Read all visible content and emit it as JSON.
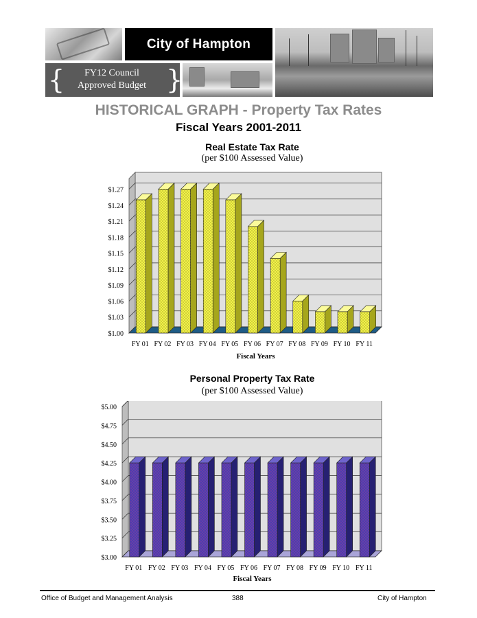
{
  "banner": {
    "title": "City of Hampton",
    "subtitle_line1": "FY12 Council",
    "subtitle_line2": "Approved Budget"
  },
  "heading": {
    "title": "HISTORICAL GRAPH - Property Tax Rates",
    "subtitle": "Fiscal Years 2001-2011"
  },
  "chart_data": [
    {
      "type": "bar",
      "title": "Real Estate Tax Rate",
      "subtitle": "(per $100 Assessed Value)",
      "xlabel": "Fiscal Years",
      "ylabel": "",
      "categories": [
        "FY 01",
        "FY 02",
        "FY 03",
        "FY 04",
        "FY 05",
        "FY 06",
        "FY 07",
        "FY 08",
        "FY 09",
        "FY 10",
        "FY 11"
      ],
      "values": [
        1.25,
        1.27,
        1.27,
        1.27,
        1.25,
        1.2,
        1.14,
        1.06,
        1.04,
        1.04,
        1.04
      ],
      "ylim": [
        1.0,
        1.29
      ],
      "yticks": [
        "$1.00",
        "$1.03",
        "$1.06",
        "$1.09",
        "$1.12",
        "$1.15",
        "$1.18",
        "$1.21",
        "$1.24",
        "$1.27"
      ],
      "grid": true,
      "colors": {
        "bar_front": "#f2f24a",
        "bar_side": "#a6a61c",
        "bar_top": "#fbfb9a",
        "floor": "#1f5c86",
        "wall": "#e0e0e0"
      }
    },
    {
      "type": "bar",
      "title": "Personal Property Tax Rate",
      "subtitle": "(per $100 Assessed Value)",
      "xlabel": "Fiscal Years",
      "ylabel": "",
      "categories": [
        "FY 01",
        "FY 02",
        "FY 03",
        "FY 04",
        "FY 05",
        "FY 06",
        "FY 07",
        "FY 08",
        "FY 09",
        "FY 10",
        "FY 11"
      ],
      "values": [
        4.25,
        4.25,
        4.25,
        4.25,
        4.25,
        4.25,
        4.25,
        4.25,
        4.25,
        4.25,
        4.25
      ],
      "ylim": [
        3.0,
        5.0
      ],
      "yticks": [
        "$3.00",
        "$3.25",
        "$3.50",
        "$3.75",
        "$4.00",
        "$4.25",
        "$4.50",
        "$4.75",
        "$5.00"
      ],
      "grid": true,
      "colors": {
        "bar_front": "#4a3fb0",
        "bar_side": "#262072",
        "bar_top": "#6e64cc",
        "floor": "#a9a4d8",
        "wall": "#e0e0e0"
      }
    }
  ],
  "footer": {
    "left": "Office of Budget and Management Analysis",
    "page": "388",
    "right": "City of Hampton"
  }
}
